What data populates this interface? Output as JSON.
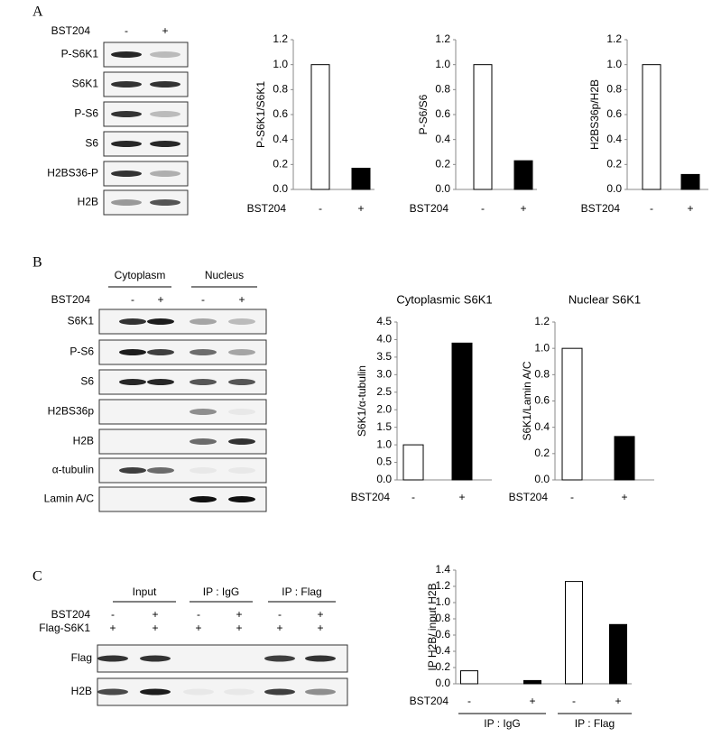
{
  "panel_labels": [
    "A",
    "B",
    "C"
  ],
  "blot_a": {
    "treatment": "BST204",
    "lanes": [
      "-",
      "+"
    ],
    "rows": [
      "P-S6K1",
      "S6K1",
      "P-S6",
      "S6",
      "H2BS36-P",
      "H2B"
    ]
  },
  "blot_b": {
    "groups": [
      "Cytoplasm",
      "Nucleus"
    ],
    "treatment": "BST204",
    "lanes": [
      "-",
      "+",
      "-",
      "+"
    ],
    "rows": [
      "S6K1",
      "P-S6",
      "S6",
      "H2BS36p",
      "H2B",
      "α-tubulin",
      "Lamin A/C"
    ]
  },
  "blot_c": {
    "groups": [
      "Input",
      "IP : IgG",
      "IP : Flag"
    ],
    "treatment": "BST204",
    "treatment_lanes": [
      "-",
      "+",
      "-",
      "+",
      "-",
      "+"
    ],
    "construct": "Flag-S6K1",
    "construct_lanes": [
      "+",
      "+",
      "+",
      "+",
      "+",
      "+"
    ],
    "rows": [
      "Flag",
      "H2B"
    ]
  },
  "chart_data": [
    {
      "type": "bar",
      "ylabel": "P-S6K1/S6K1",
      "xlabel": "BST204",
      "categories": [
        "-",
        "+"
      ],
      "values": [
        1.0,
        0.17
      ],
      "colors": [
        "#ffffff",
        "#000000"
      ],
      "ylim": [
        0,
        1.2
      ],
      "yticks": [
        {
          "value": 0,
          "label": "0.0"
        },
        0.2,
        0.4,
        0.6,
        0.8,
        {
          "value": 1,
          "label": "1.0"
        },
        1.2
      ]
    },
    {
      "type": "bar",
      "ylabel": "P-S6/S6",
      "xlabel": "BST204",
      "categories": [
        "-",
        "+"
      ],
      "values": [
        1.0,
        0.23
      ],
      "colors": [
        "#ffffff",
        "#000000"
      ],
      "ylim": [
        0,
        1.2
      ],
      "yticks": [
        {
          "value": 0,
          "label": "0.0"
        },
        0.2,
        0.4,
        0.6,
        0.8,
        {
          "value": 1,
          "label": "1.0"
        },
        1.2
      ]
    },
    {
      "type": "bar",
      "ylabel": "H2BS36p/H2B",
      "xlabel": "BST204",
      "categories": [
        "-",
        "+"
      ],
      "values": [
        1.0,
        0.12
      ],
      "colors": [
        "#ffffff",
        "#000000"
      ],
      "ylim": [
        0,
        1.2
      ],
      "yticks": [
        {
          "value": 0,
          "label": "0.0"
        },
        0.2,
        0.4,
        0.6,
        0.8,
        {
          "value": 1,
          "label": "1.0"
        },
        1.2
      ]
    },
    {
      "type": "bar",
      "title": "Cytoplasmic S6K1",
      "ylabel": "S6K1/α-tubulin",
      "xlabel": "BST204",
      "categories": [
        "-",
        "+"
      ],
      "values": [
        1.0,
        3.9
      ],
      "colors": [
        "#ffffff",
        "#000000"
      ],
      "ylim": [
        0,
        4.5
      ],
      "yticks": [
        {
          "value": 0,
          "label": "0.0"
        },
        0.5,
        {
          "value": 1,
          "label": "1.0"
        },
        1.5,
        {
          "value": 2,
          "label": "2.0"
        },
        2.5,
        {
          "value": 3,
          "label": "3.0"
        },
        3.5,
        {
          "value": 4,
          "label": "4.0"
        },
        4.5
      ]
    },
    {
      "type": "bar",
      "title": "Nuclear S6K1",
      "ylabel": "S6K1/Lamin A/C",
      "xlabel": "BST204",
      "categories": [
        "-",
        "+"
      ],
      "values": [
        1.0,
        0.33
      ],
      "colors": [
        "#ffffff",
        "#000000"
      ],
      "ylim": [
        0,
        1.2
      ],
      "yticks": [
        {
          "value": 0,
          "label": "0.0"
        },
        0.2,
        0.4,
        0.6,
        0.8,
        {
          "value": 1,
          "label": "1.0"
        },
        1.2
      ]
    },
    {
      "type": "bar",
      "ylabel": "IP H2B/ input H2B",
      "xlabel": "BST204",
      "categories": [
        "-",
        "+",
        "-",
        "+"
      ],
      "values": [
        0.16,
        0.04,
        1.26,
        0.73
      ],
      "colors": [
        "#ffffff",
        "#000000",
        "#ffffff",
        "#000000"
      ],
      "groups": [
        "IP : IgG",
        "IP : Flag"
      ],
      "ylim": [
        0,
        1.4
      ],
      "yticks": [
        {
          "value": 0,
          "label": "0.0"
        },
        0.2,
        0.4,
        0.6,
        0.8,
        {
          "value": 1,
          "label": "1.0"
        },
        1.2,
        1.4
      ]
    }
  ]
}
